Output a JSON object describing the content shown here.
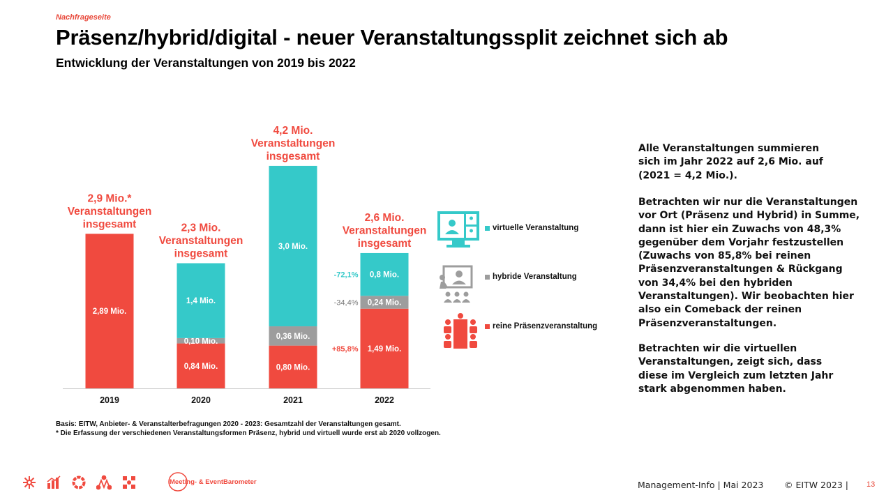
{
  "header": {
    "kicker": "Nachfrageseite",
    "title": "Präsenz/hybrid/digital - neuer Veranstaltungssplit zeichnet sich ab",
    "subtitle": "Entwicklung der Veranstaltungen von 2019 bis 2022"
  },
  "colors": {
    "praesenz": "#f04a3f",
    "hybrid": "#9d9d9d",
    "virtuell": "#35c9c9",
    "accent": "#e8483a"
  },
  "chart_data": {
    "type": "bar",
    "stacked": true,
    "categories": [
      "2019",
      "2020",
      "2021",
      "2022"
    ],
    "series": [
      {
        "name": "reine Präsenzveranstaltung",
        "values": [
          2.89,
          0.84,
          0.8,
          1.49
        ],
        "labels": [
          "2,89 Mio.",
          "0,84 Mio.",
          "0,80 Mio.",
          "1,49 Mio."
        ]
      },
      {
        "name": "hybride Veranstaltung",
        "values": [
          null,
          0.1,
          0.36,
          0.24
        ],
        "labels": [
          "",
          "0,10 Mio.",
          "0,36 Mio.",
          "0,24 Mio."
        ]
      },
      {
        "name": "virtuelle Veranstaltung",
        "values": [
          null,
          1.4,
          3.0,
          0.8
        ],
        "labels": [
          "",
          "1,4 Mio.",
          "3,0 Mio.",
          "0,8 Mio."
        ]
      }
    ],
    "totals": [
      [
        "2,9 Mio.*",
        "Veranstaltungen",
        "insgesamt"
      ],
      [
        "2,3 Mio.",
        "Veranstaltungen",
        "insgesamt"
      ],
      [
        "4,2 Mio.",
        "Veranstaltungen",
        "insgesamt"
      ],
      [
        "2,6 Mio.",
        "Veranstaltungen",
        "insgesamt"
      ]
    ],
    "changes_2022": {
      "virtuell": "-72,1%",
      "hybrid": "-34,4%",
      "praesenz": "+85,8%"
    },
    "ylim": [
      0,
      4.2
    ],
    "legend": "right",
    "grid": false
  },
  "text": {
    "para1": "Alle Veranstaltungen summieren\nsich im Jahr 2022 auf 2,6 Mio. auf\n(2021 = 4,2 Mio.).",
    "para2": "Betrachten wir nur die Veranstaltungen\nvor Ort (Präsenz und Hybrid) in Summe,\ndann ist hier ein Zuwachs von 48,3%\ngegenüber dem Vorjahr festzustellen\n(Zuwachs von 85,8% bei reinen\nPräsenzveranstaltungen & Rückgang\nvon 34,4% bei den hybriden\nVeranstaltungen). Wir beobachten hier\nalso ein Comeback der reinen\nPräsenzveranstaltungen.",
    "para3": "Betrachten wir die virtuellen\nVeranstaltungen, zeigt sich, dass\ndiese im Vergleich zum letzten Jahr\nstark abgenommen haben."
  },
  "footnote": {
    "line1": "Basis: EITW, Anbieter- & Veranstalterbefragungen 2020 - 2023: Gesamtzahl der Veranstaltungen gesamt.",
    "line2": "* Die Erfassung der verschiedenen Veranstaltungsformen Präsenz, hybrid und virtuell wurde erst ab 2020 vollzogen."
  },
  "footer": {
    "brand": "Meeting- & EventBarometer",
    "report": "Management-Info | Mai 2023",
    "copyright": "© EITW 2023 |",
    "page": "13"
  },
  "icons": [
    "asterisk-icon",
    "bar-chart-icon",
    "ring-icon",
    "people-network-icon",
    "network-icon",
    "monitor-video-call-icon",
    "presenter-audience-icon",
    "meeting-table-icon"
  ]
}
